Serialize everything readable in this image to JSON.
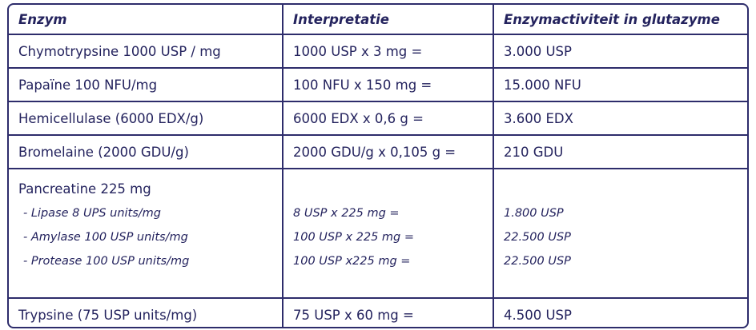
{
  "table": {
    "header": [
      "Enzym",
      "Interpretatie",
      "Enzymactiviteit in glutazyme"
    ],
    "rows": [
      {
        "cells": [
          "Chymotrypsine 1000 USP / mg",
          "1000 USP x 3 mg =",
          "3.000 USP"
        ]
      },
      {
        "cells": [
          "Papaïne 100 NFU/mg",
          "100 NFU x 150 mg =",
          "15.000 NFU"
        ]
      },
      {
        "cells": [
          "Hemicellulase (6000 EDX/g)",
          "6000 EDX x 0,6 g =",
          "3.600 EDX"
        ]
      },
      {
        "cells": [
          "Bromelaine (2000 GDU/g)",
          "2000 GDU/g x 0,105 g =",
          "210 GDU"
        ]
      },
      {
        "title": "Pancreatine 225 mg",
        "items": [
          [
            "- Lipase 8 UPS units/mg",
            "8 USP x 225 mg =",
            "1.800 USP"
          ],
          [
            "- Amylase 100 USP units/mg",
            "100 USP x 225 mg =",
            "22.500 USP"
          ],
          [
            "- Protease 100 USP units/mg",
            "100 USP x225 mg =",
            "22.500 USP"
          ]
        ]
      },
      {
        "cells": [
          "Trypsine (75 USP units/mg)",
          "75 USP x 60 mg =",
          "4.500 USP"
        ]
      }
    ]
  }
}
